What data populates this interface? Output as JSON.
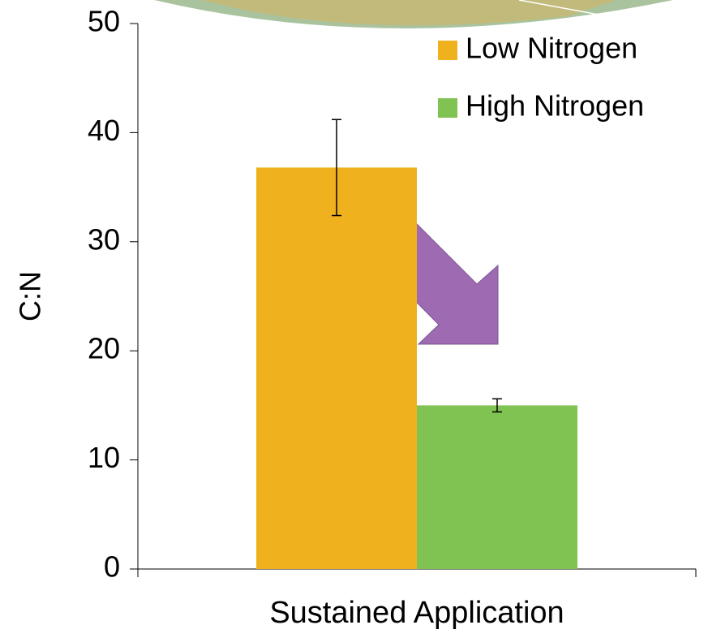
{
  "chart_data": {
    "type": "bar",
    "categories": [
      "Sustained Application"
    ],
    "y_label": "C:N",
    "series": [
      {
        "name": "Low Nitrogen",
        "color": "#efb21e",
        "values": [
          36.8
        ],
        "errors": [
          4.4
        ]
      },
      {
        "name": "High Nitrogen",
        "color": "#80c352",
        "values": [
          15.0
        ],
        "errors": [
          0.6
        ]
      }
    ],
    "ylim": [
      0,
      50
    ],
    "yticks": [
      0,
      10,
      20,
      30,
      40,
      50
    ],
    "grid": false,
    "legend": "top-right"
  }
}
